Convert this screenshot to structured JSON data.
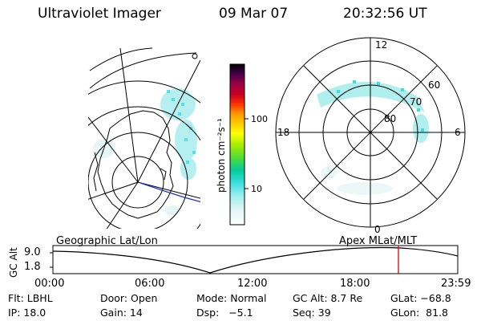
{
  "header": {
    "title": "Ultraviolet Imager",
    "date": "09 Mar 07",
    "time": "20:32:56 UT"
  },
  "colorbar": {
    "label": "photon cm⁻²s⁻¹",
    "ticks": [
      "100",
      "10"
    ],
    "scale": "log",
    "colors": [
      "#ffffff",
      "#dff6f6",
      "#9aeeee",
      "#3cdede",
      "#00cc99",
      "#55dd33",
      "#aaee00",
      "#ffff00",
      "#ffcc00",
      "#ff9900",
      "#ff3300",
      "#cc0022",
      "#990044",
      "#44004a",
      "#000000"
    ]
  },
  "left_panel": {
    "caption": "Geographic Lat/Lon"
  },
  "right_panel": {
    "caption": "Apex  MLat/MLT",
    "mlt_labels": [
      "12",
      "18",
      "6",
      "0"
    ],
    "mlat_labels": [
      "60",
      "70",
      "80"
    ]
  },
  "altitude_plot": {
    "ylabel": "GC Alt",
    "yticks": [
      "9.0",
      "1.8"
    ],
    "xticks": [
      "00:00",
      "06:00",
      "12:00",
      "18:00",
      "23:59"
    ],
    "marker_time": "20:32:56",
    "marker_color": "#dd0000"
  },
  "footer": {
    "flt": "Flt: LBHL",
    "door": "Door: Open",
    "mode": "Mode: Normal",
    "gcalt": "GC Alt: 8.7 Re",
    "glat": "GLat: −68.8",
    "ip": "IP: 18.0",
    "gain": "Gain: 14",
    "dsp": "Dsp:   −5.1",
    "seq": "Seq: 39",
    "glon": "GLon:  81.8"
  }
}
